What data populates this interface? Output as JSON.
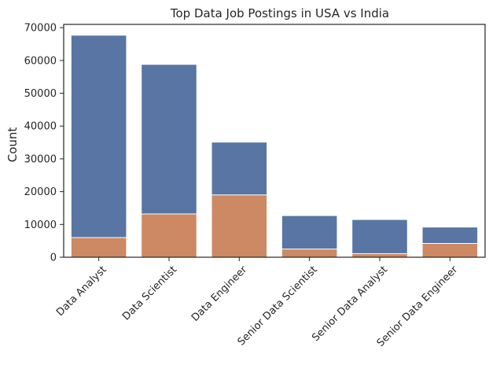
{
  "chart_data": {
    "type": "bar",
    "title": "Top Data Job Postings in USA vs India",
    "xlabel": "",
    "ylabel": "Count",
    "ylim": [
      0,
      71000
    ],
    "yticks": [
      0,
      10000,
      20000,
      30000,
      40000,
      50000,
      60000,
      70000
    ],
    "grid": false,
    "legend": "none",
    "overlay": true,
    "categories": [
      "Data Analyst",
      "Data Scientist",
      "Data Engineer",
      "Senior Data Scientist",
      "Senior Data Analyst",
      "Senior Data Engineer"
    ],
    "series": [
      {
        "color": "#5875a4",
        "values": [
          67700,
          58800,
          35100,
          12700,
          11500,
          9200
        ]
      },
      {
        "color": "#cc8963",
        "values": [
          6000,
          13200,
          19000,
          2500,
          1100,
          4200
        ]
      }
    ]
  }
}
